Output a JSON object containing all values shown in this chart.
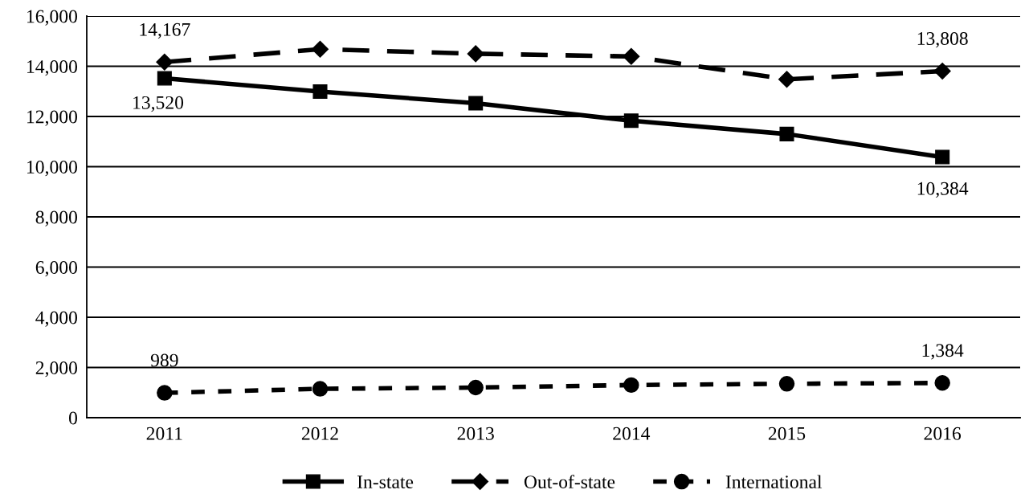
{
  "chart_data": {
    "type": "line",
    "categories": [
      "2011",
      "2012",
      "2013",
      "2014",
      "2015",
      "2016"
    ],
    "ylim": [
      0,
      16000
    ],
    "yticks": [
      {
        "value": 0,
        "label": "0"
      },
      {
        "value": 2000,
        "label": "2,000"
      },
      {
        "value": 4000,
        "label": "4,000"
      },
      {
        "value": 6000,
        "label": "6,000"
      },
      {
        "value": 8000,
        "label": "8,000"
      },
      {
        "value": 10000,
        "label": "10,000"
      },
      {
        "value": 12000,
        "label": "12,000"
      },
      {
        "value": 14000,
        "label": "14,000"
      },
      {
        "value": 16000,
        "label": "16,000"
      }
    ],
    "grid": "y",
    "legend": "bottom",
    "series": [
      {
        "name": "In-state",
        "color": "#000000",
        "marker": "square",
        "line_style": "solid",
        "values": [
          13520,
          12990,
          12530,
          11830,
          11300,
          10384
        ],
        "value_labels": [
          "13,520",
          null,
          null,
          null,
          null,
          "10,384"
        ]
      },
      {
        "name": "Out-of-state",
        "color": "#000000",
        "marker": "diamond",
        "line_style": "dashed",
        "values": [
          14167,
          14680,
          14500,
          14390,
          13480,
          13808
        ],
        "value_labels": [
          "14,167",
          null,
          null,
          null,
          null,
          "13,808"
        ]
      },
      {
        "name": "International",
        "color": "#000000",
        "marker": "circle",
        "line_style": "dashed",
        "values": [
          989,
          1150,
          1200,
          1300,
          1350,
          1384
        ],
        "value_labels": [
          "989",
          null,
          null,
          null,
          null,
          "1,384"
        ]
      }
    ]
  }
}
